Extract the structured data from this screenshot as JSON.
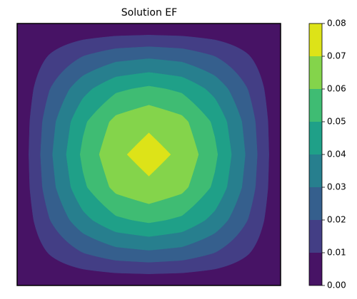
{
  "chart_data": {
    "type": "contourf",
    "title": "Solution EF",
    "x": [
      0,
      0.125,
      0.25,
      0.375,
      0.5,
      0.625,
      0.75,
      0.875,
      1
    ],
    "y": [
      0,
      0.125,
      0.25,
      0.375,
      0.5,
      0.625,
      0.75,
      0.875,
      1
    ],
    "z": [
      [
        0,
        0,
        0,
        0,
        0,
        0,
        0,
        0,
        0
      ],
      [
        0,
        0.0108,
        0.02,
        0.0261,
        0.0282,
        0.0261,
        0.02,
        0.0108,
        0
      ],
      [
        0,
        0.02,
        0.0368,
        0.0481,
        0.0521,
        0.0481,
        0.0368,
        0.02,
        0
      ],
      [
        0,
        0.0261,
        0.0481,
        0.0629,
        0.0681,
        0.0629,
        0.0481,
        0.0261,
        0
      ],
      [
        0,
        0.0282,
        0.0521,
        0.0681,
        0.0737,
        0.0681,
        0.0521,
        0.0282,
        0
      ],
      [
        0,
        0.0261,
        0.0481,
        0.0629,
        0.0681,
        0.0629,
        0.0481,
        0.0261,
        0
      ],
      [
        0,
        0.02,
        0.0368,
        0.0481,
        0.0521,
        0.0481,
        0.0368,
        0.02,
        0
      ],
      [
        0,
        0.0108,
        0.02,
        0.0261,
        0.0282,
        0.0261,
        0.02,
        0.0108,
        0
      ],
      [
        0,
        0,
        0,
        0,
        0,
        0,
        0,
        0,
        0
      ]
    ],
    "levels": [
      0,
      0.01,
      0.02,
      0.03,
      0.04,
      0.05,
      0.06,
      0.07,
      0.08
    ],
    "colors": [
      "#471365",
      "#433e85",
      "#355f8d",
      "#277f8e",
      "#1fa088",
      "#3fbc73",
      "#84d44b",
      "#dde318"
    ],
    "colorbar_ticks": [
      {
        "value": 0,
        "label": "0.00"
      },
      {
        "value": 0.01,
        "label": "0.01"
      },
      {
        "value": 0.02,
        "label": "0.02"
      },
      {
        "value": 0.03,
        "label": "0.03"
      },
      {
        "value": 0.04,
        "label": "0.04"
      },
      {
        "value": 0.05,
        "label": "0.05"
      },
      {
        "value": 0.06,
        "label": "0.06"
      },
      {
        "value": 0.07,
        "label": "0.07"
      },
      {
        "value": 0.08,
        "label": "0.08"
      }
    ]
  }
}
